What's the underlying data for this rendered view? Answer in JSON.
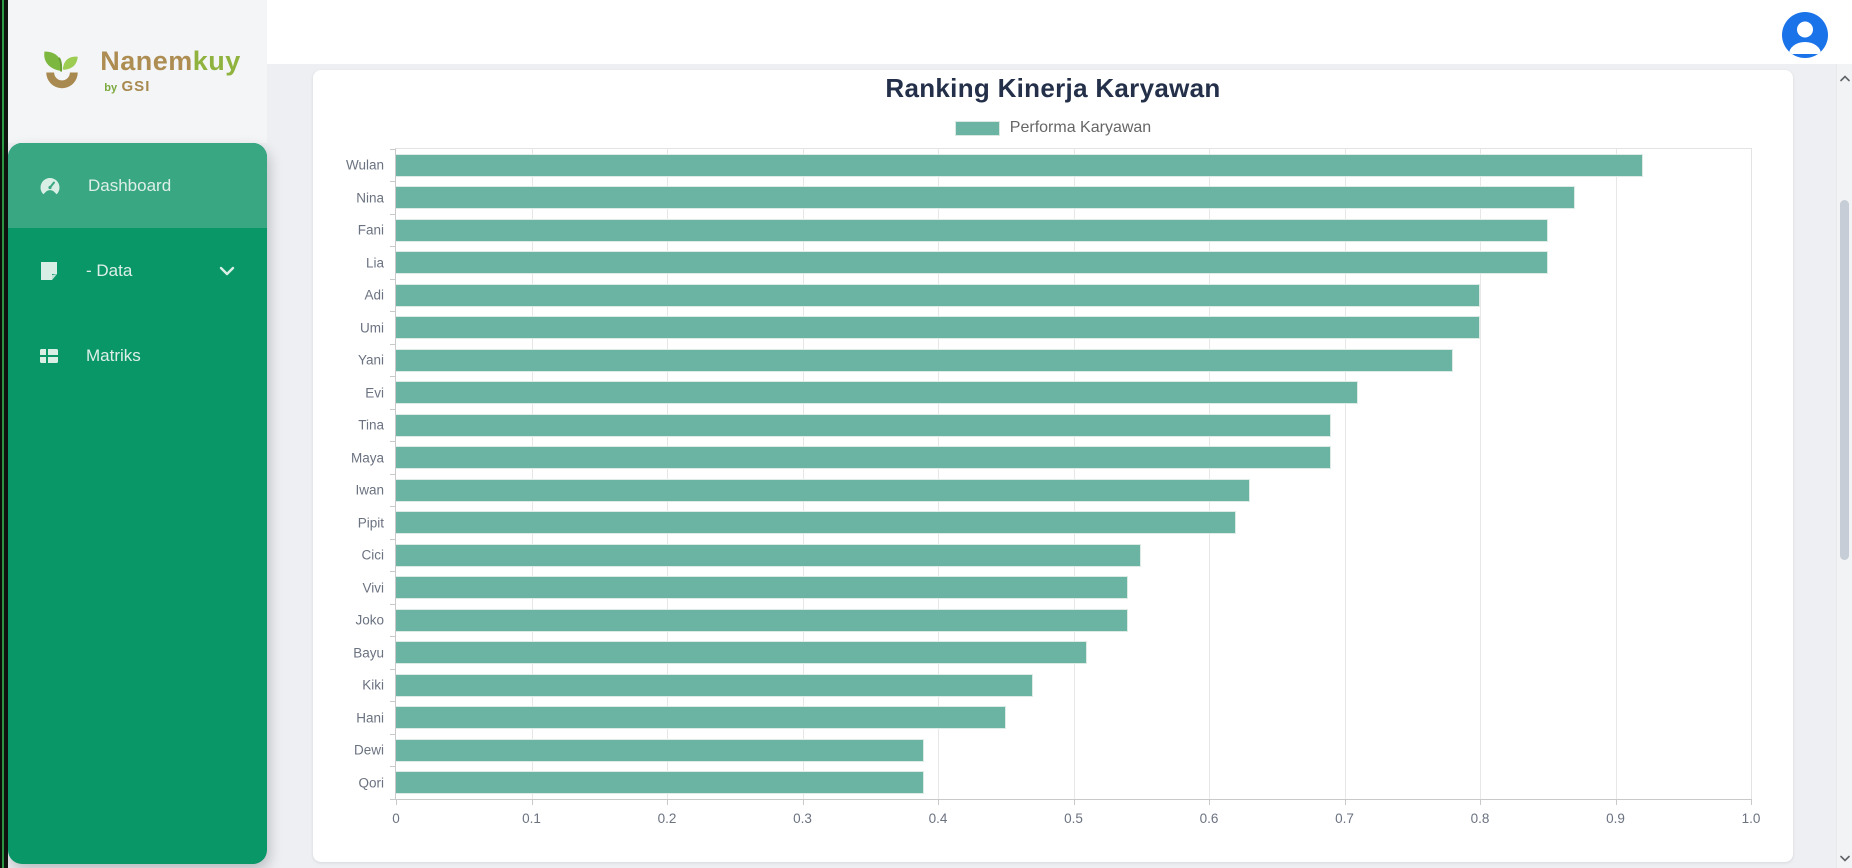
{
  "brand": {
    "name_part1": "Nanem",
    "name_part2": "kuy",
    "byline": "by",
    "org": "GSI",
    "logo_icon": "leaf-sprout-icon"
  },
  "sidebar": {
    "items": [
      {
        "label": "Dashboard",
        "icon": "gauge-icon",
        "active": true
      },
      {
        "label": "- Data",
        "icon": "file-icon",
        "active": false,
        "expandable": true,
        "chevron_icon": "chevron-down-icon"
      },
      {
        "label": "Matriks",
        "icon": "table-icon",
        "active": false
      }
    ]
  },
  "header": {
    "avatar_icon": "user-avatar-icon"
  },
  "colors": {
    "sidebar_green": "#0a9768",
    "active_item_green": "#3aa783",
    "bar_fill": "#6bb3a2",
    "title_navy": "#243049",
    "avatar_blue": "#1a73e8",
    "logo_brown": "#ad8d52",
    "logo_green": "#8fb33e",
    "axis_label_gray": "#6b7280"
  },
  "chart_data": {
    "type": "bar",
    "orientation": "horizontal",
    "title": "Ranking Kinerja Karyawan",
    "legend": [
      "Performa Karyawan"
    ],
    "legend_position": "top",
    "categories": [
      "Wulan",
      "Nina",
      "Fani",
      "Lia",
      "Adi",
      "Umi",
      "Yani",
      "Evi",
      "Tina",
      "Maya",
      "Iwan",
      "Pipit",
      "Cici",
      "Vivi",
      "Joko",
      "Bayu",
      "Kiki",
      "Hani",
      "Dewi",
      "Qori"
    ],
    "values": [
      0.92,
      0.87,
      0.85,
      0.85,
      0.8,
      0.8,
      0.78,
      0.71,
      0.69,
      0.69,
      0.63,
      0.62,
      0.55,
      0.54,
      0.54,
      0.51,
      0.47,
      0.45,
      0.39,
      0.39
    ],
    "xlim": [
      0,
      1
    ],
    "x_ticks": [
      "0",
      "0.1",
      "0.2",
      "0.3",
      "0.4",
      "0.5",
      "0.6",
      "0.7",
      "0.8",
      "0.9",
      "1.0"
    ],
    "grid": true,
    "bar_color": "#6bb3a2"
  }
}
